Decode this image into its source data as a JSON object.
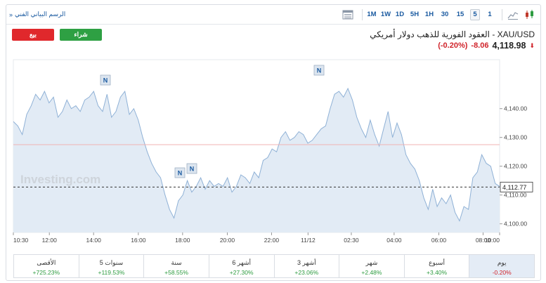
{
  "toolbar": {
    "technical_chart_link": "الرسم البياني الفني",
    "timeframes": [
      "1",
      "5",
      "15",
      "30",
      "1H",
      "5H",
      "1D",
      "1W",
      "1M"
    ],
    "active_timeframe": "5"
  },
  "header": {
    "sell_label": "بيع",
    "buy_label": "شراء",
    "title": "XAU/USD - العقود الفورية للذهب دولار أمريكي",
    "price": "4,118.98",
    "change": "-8.06",
    "change_pct": "(-0.20%)"
  },
  "watermark": "Investing.com",
  "chart_data": {
    "type": "area",
    "x_ticks": [
      "10:30",
      "12:00",
      "14:00",
      "16:00",
      "18:00",
      "20:00",
      "22:00",
      "11/12",
      "02:30",
      "04:00",
      "06:00",
      "08:00",
      "10:00"
    ],
    "y_ticks": [
      4100,
      4110,
      4120,
      4130,
      4140
    ],
    "y_tick_labels": [
      "4,100.00",
      "4,110.00",
      "4,120.00",
      "4,130.00",
      "4,140.00"
    ],
    "ylim": [
      4097,
      4157
    ],
    "current_value": 4112.77,
    "current_label": "4,112.77",
    "reference_level": 4127.5,
    "news_markers": [
      "N",
      "N",
      "N",
      "N"
    ],
    "values": [
      4135.5,
      4134,
      4131,
      4138,
      4141,
      4145,
      4143,
      4146,
      4142,
      4144,
      4137,
      4139,
      4143,
      4140,
      4141,
      4139,
      4143,
      4144,
      4146,
      4141,
      4139,
      4145,
      4137,
      4139,
      4144,
      4146,
      4138,
      4140,
      4136,
      4130,
      4125,
      4121,
      4118,
      4116,
      4110,
      4105,
      4102,
      4108,
      4110,
      4115,
      4111,
      4113,
      4116,
      4112,
      4115,
      4113,
      4114,
      4113,
      4116,
      4111,
      4113,
      4117,
      4116,
      4114,
      4118,
      4116,
      4122,
      4123,
      4126,
      4125,
      4130,
      4132,
      4129,
      4130,
      4132,
      4131,
      4128,
      4129,
      4131,
      4133,
      4134,
      4140,
      4145,
      4146,
      4144,
      4147,
      4143,
      4137,
      4133,
      4130,
      4136,
      4131,
      4127,
      4133,
      4139,
      4130,
      4135,
      4131,
      4124,
      4121,
      4119,
      4115,
      4109,
      4105,
      4112,
      4106,
      4109,
      4107,
      4110,
      4104,
      4101,
      4106,
      4105,
      4116,
      4118,
      4124,
      4121,
      4120,
      4114,
      4113
    ]
  }
}
